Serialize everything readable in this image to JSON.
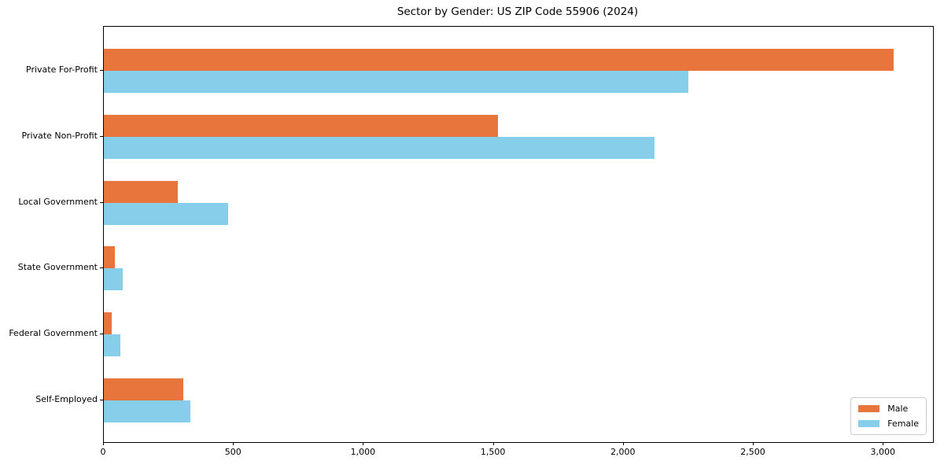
{
  "title": "Sector by Gender: US ZIP Code 55906 (2024)",
  "colors": {
    "male": "#e8763c",
    "female": "#87ceeb",
    "axis": "#000000",
    "legend_border": "#cccccc",
    "background": "#ffffff"
  },
  "chart_data": {
    "type": "bar",
    "orientation": "horizontal",
    "title": "Sector by Gender: US ZIP Code 55906 (2024)",
    "categories": [
      "Private For-Profit",
      "Private Non-Profit",
      "Local Government",
      "State Government",
      "Federal Government",
      "Self-Employed"
    ],
    "series": [
      {
        "name": "Male",
        "color": "#e8763c",
        "values": [
          3040,
          1515,
          283,
          43,
          31,
          307
        ]
      },
      {
        "name": "Female",
        "color": "#87ceeb",
        "values": [
          2250,
          2120,
          478,
          73,
          64,
          332
        ]
      }
    ],
    "xlabel": "",
    "ylabel": "",
    "xlim": [
      0,
      3190
    ],
    "xticks": [
      0,
      500,
      1000,
      1500,
      2000,
      2500,
      3000
    ],
    "xtick_labels": [
      "0",
      "500",
      "1,000",
      "1,500",
      "2,000",
      "2,500",
      "3,000"
    ],
    "grid": false,
    "legend_position": "lower right"
  }
}
